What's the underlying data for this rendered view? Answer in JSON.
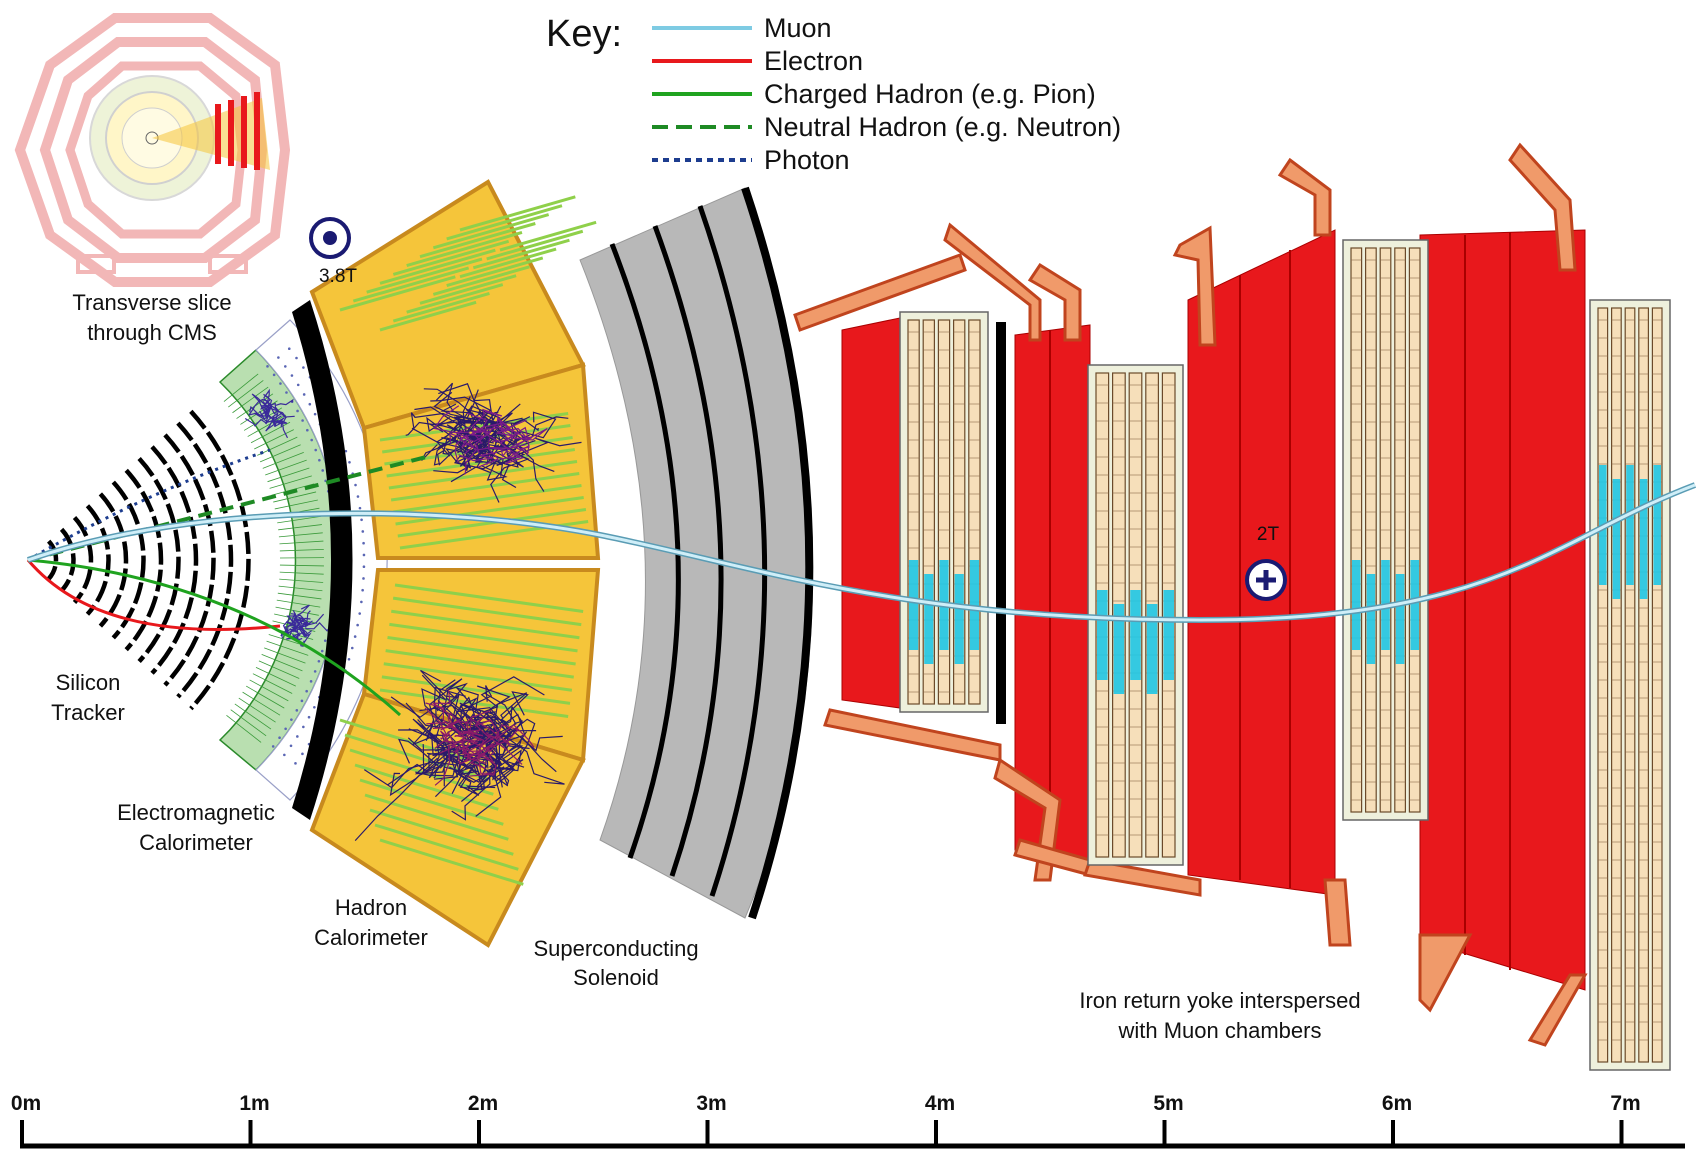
{
  "key": {
    "title": "Key:",
    "items": [
      {
        "label": "Muon",
        "color": "#7ecbe3",
        "style": "solid"
      },
      {
        "label": "Electron",
        "color": "#e8181c",
        "style": "solid"
      },
      {
        "label": "Charged Hadron (e.g. Pion)",
        "color": "#1fa31f",
        "style": "solid"
      },
      {
        "label": "Neutral Hadron (e.g. Neutron)",
        "color": "#1e8a24",
        "style": "dashed"
      },
      {
        "label": "Photon",
        "color": "#1d3d8f",
        "style": "dotted"
      }
    ]
  },
  "labels": {
    "transverse": [
      "Transverse slice",
      "through CMS"
    ],
    "tracker": [
      "Silicon",
      "Tracker"
    ],
    "ecal": [
      "Electromagnetic",
      "Calorimeter"
    ],
    "hcal": [
      "Hadron",
      "Calorimeter"
    ],
    "solenoid": [
      "Superconducting",
      "Solenoid"
    ],
    "yoke": [
      "Iron return yoke interspersed",
      "with Muon chambers"
    ]
  },
  "fields": {
    "inner": {
      "value": "3.8T",
      "icon": "field-out-of-page-icon"
    },
    "outer": {
      "value": "2T",
      "icon": "field-into-page-icon"
    }
  },
  "scale": {
    "ticks": [
      "0m",
      "1m",
      "2m",
      "3m",
      "4m",
      "5m",
      "6m",
      "7m"
    ]
  },
  "colors": {
    "hcal": "#f5c53a",
    "hcal_border": "#c88a1e",
    "yoke": "#e8181c",
    "yoke_arm": "#f09a6a",
    "ecal": "#b9dfb0",
    "chamber": "#f6dfba",
    "chamber_active": "#1fc6e6",
    "solenoid": "#b8b8b8"
  }
}
